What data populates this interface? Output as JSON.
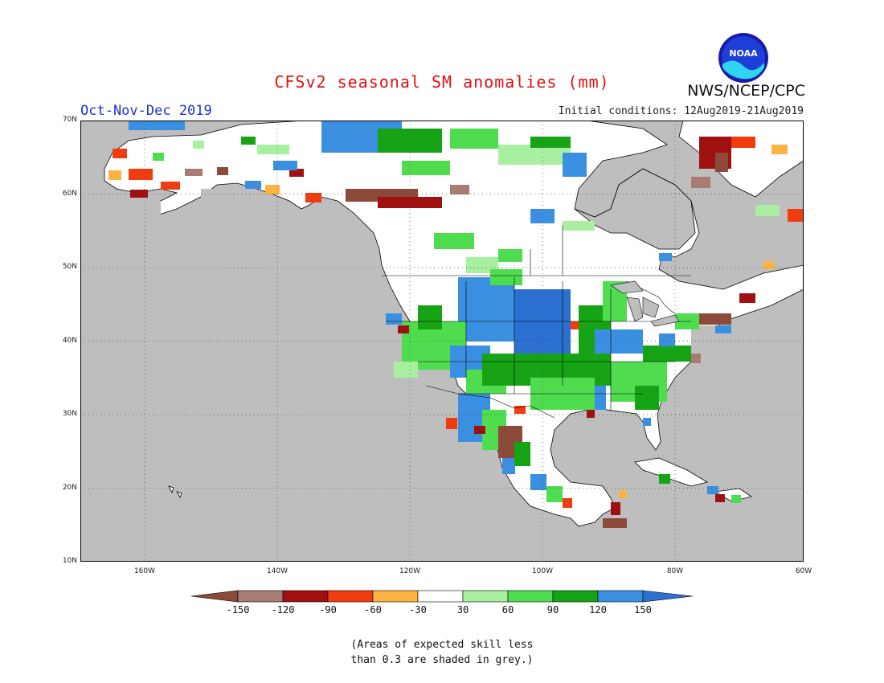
{
  "header": {
    "title": "CFSv2 seasonal SM anomalies (mm)",
    "period": "Oct-Nov-Dec 2019",
    "initial_conditions": "Initial conditions: 12Aug2019-21Aug2019",
    "agency": "NWS/NCEP/CPC",
    "logo_text": "NOAA"
  },
  "map": {
    "lon_range": [
      -172,
      -60
    ],
    "lat_range": [
      10,
      70
    ],
    "grid": "dotted",
    "lat_ticks": [
      "10N",
      "20N",
      "30N",
      "40N",
      "50N",
      "60N",
      "70N"
    ],
    "lon_ticks": [
      "160W",
      "140W",
      "120W",
      "100W",
      "80W",
      "60W"
    ],
    "colors": {
      "ocean": "#bebebe",
      "land_low_skill": "#ffffff"
    }
  },
  "legend": {
    "labels": [
      "-150",
      "-120",
      "-90",
      "-60",
      "-30",
      "30",
      "60",
      "90",
      "120",
      "150"
    ],
    "colors": [
      "#8b4a3a",
      "#a87c73",
      "#a01010",
      "#f03c0f",
      "#fbb443",
      "#ffffff",
      "#a8f0a0",
      "#4fdc4f",
      "#16a316",
      "#3b8fe0",
      "#2b6fd0"
    ]
  },
  "footnote": {
    "line1": "(Areas of expected skill less",
    "line2": "than 0.3 are shaded in grey.)"
  }
}
